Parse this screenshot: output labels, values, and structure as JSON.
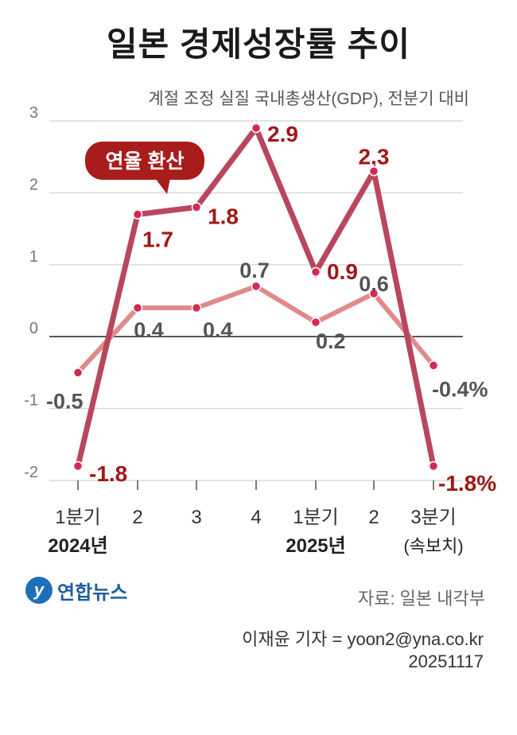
{
  "title": "일본 경제성장률 추이",
  "subtitle": "계절 조정 실질 국내총생산(GDP), 전분기 대비",
  "callout": "연율 환산",
  "source": "자료: 일본 내각부",
  "reporter": "이재윤 기자 = yoon2@yna.co.kr",
  "date": "20251117",
  "logo_text": "연합뉴스",
  "colors": {
    "annualized": "#b8475d",
    "quarterly": "#e08a8a",
    "annualized_label": "#a01818",
    "quarterly_label": "#555555",
    "dot": "#d42a52"
  },
  "chart_data": {
    "type": "line",
    "title": "일본 경제성장률 추이",
    "ylim": [
      -2,
      3
    ],
    "yticks": [
      "3",
      "2",
      "1",
      "0",
      "-1",
      "-2"
    ],
    "ytick_values": [
      3,
      2,
      1,
      0,
      -1,
      -2
    ],
    "categories": [
      "1분기",
      "2",
      "3",
      "4",
      "1분기",
      "2",
      "3분기"
    ],
    "sublabels": [
      "2024년",
      "",
      "",
      "",
      "2025년",
      "",
      "(속보치)"
    ],
    "series": [
      {
        "name": "연율 환산",
        "values": [
          -1.8,
          1.7,
          1.8,
          2.9,
          0.9,
          2.3,
          -1.8
        ],
        "labels": [
          "-1.8",
          "1.7",
          "1.8",
          "2.9",
          "0.9",
          "2.3",
          "-1.8%"
        ]
      },
      {
        "name": "전분기 대비",
        "values": [
          -0.5,
          0.4,
          0.4,
          0.7,
          0.2,
          0.6,
          -0.4
        ],
        "labels": [
          "-0.5",
          "0.4",
          "0.4",
          "0.7",
          "0.2",
          "0.6",
          "-0.4%"
        ]
      }
    ]
  }
}
